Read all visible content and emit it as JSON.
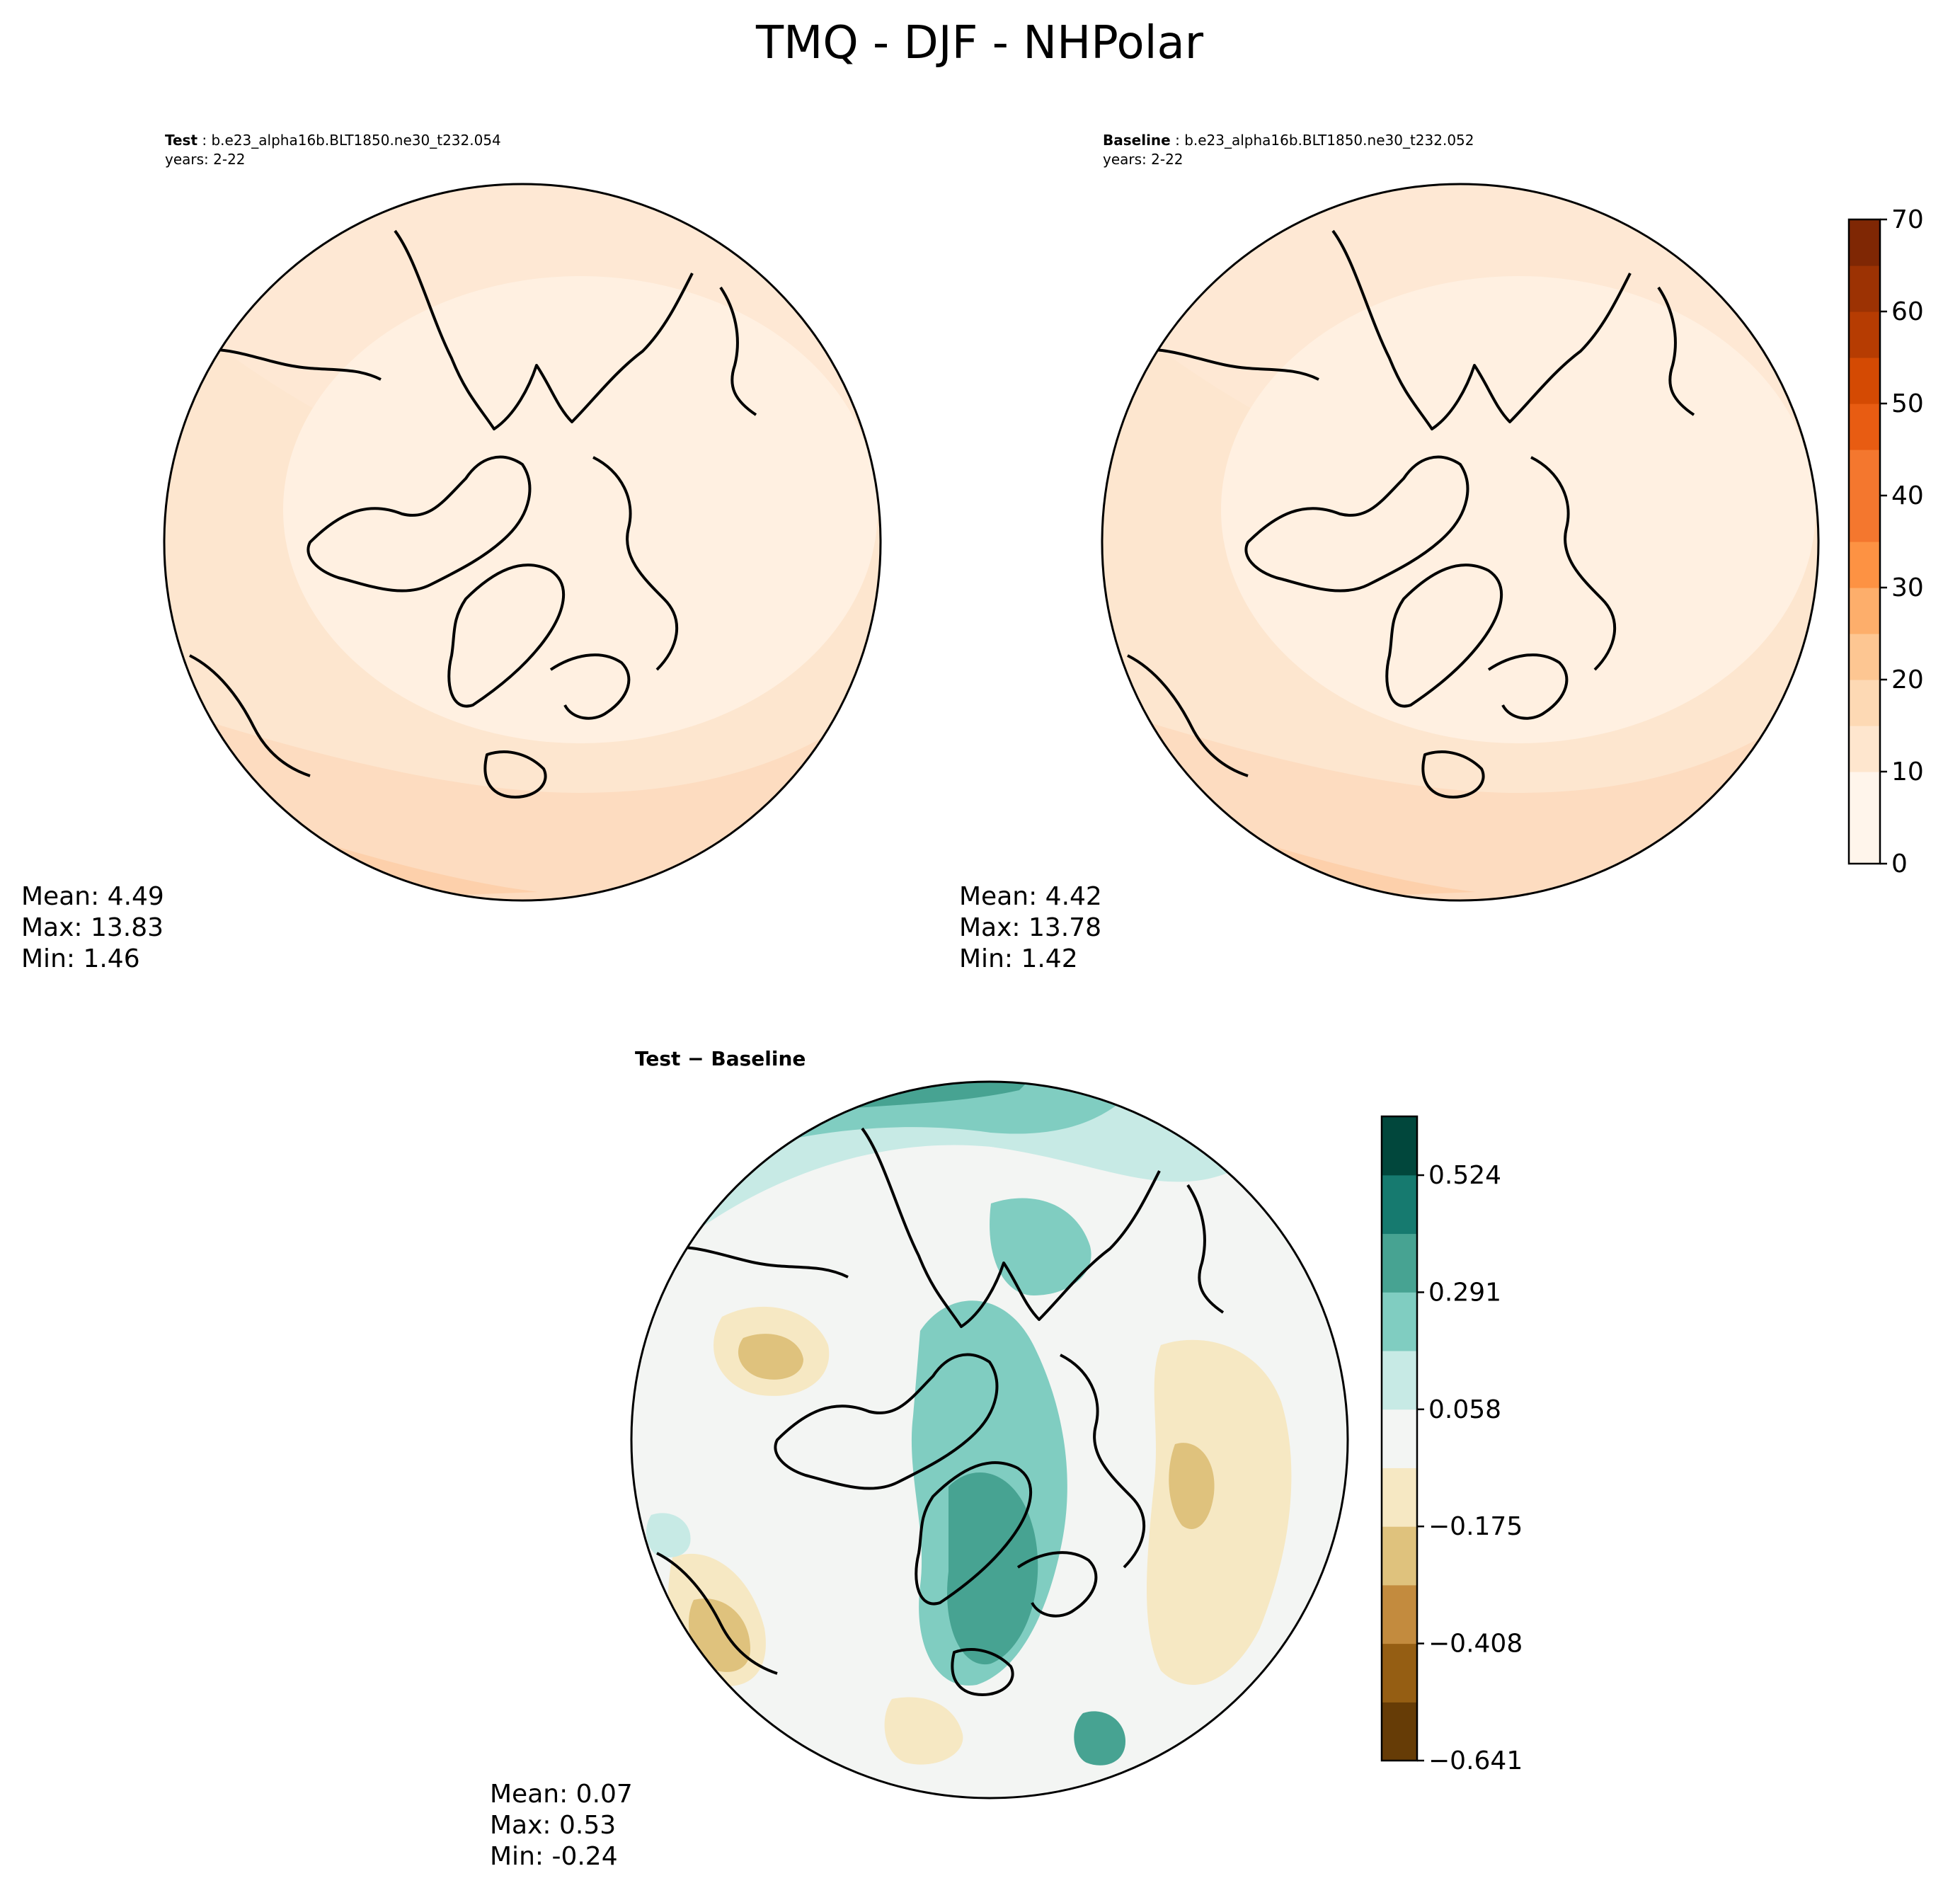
{
  "title": "TMQ - DJF - NHPolar",
  "panels": [
    {
      "id": "test",
      "label_bold": "Test",
      "label_rest": " : b.e23_alpha16b.BLT1850.ne30_t232.054",
      "years": "years: 2-22",
      "stats": [
        "Mean:  4.49",
        "Max: 13.83",
        "Min:  1.46"
      ]
    },
    {
      "id": "baseline",
      "label_bold": "Baseline",
      "label_rest": " : b.e23_alpha16b.BLT1850.ne30_t232.052",
      "years": "years: 2-22",
      "stats": [
        "Mean:  4.42",
        "Max: 13.78",
        "Min:  1.42"
      ]
    },
    {
      "id": "diff",
      "label_bold": "Test − Baseline",
      "stats": [
        "Mean:  0.07",
        "Max:  0.53",
        "Min: -0.24"
      ]
    }
  ],
  "chart_data": [
    {
      "type": "heatmap",
      "projection": "north-polar-stereographic",
      "panel": "Test",
      "stats": {
        "mean": 4.49,
        "max": 13.83,
        "min": 1.46
      },
      "colorbar": {
        "ticks": [
          "0",
          "10",
          "20",
          "30",
          "40",
          "50",
          "60",
          "70"
        ],
        "range": [
          0,
          70
        ],
        "step": 5,
        "cmap": "Oranges"
      }
    },
    {
      "type": "heatmap",
      "projection": "north-polar-stereographic",
      "panel": "Baseline",
      "stats": {
        "mean": 4.42,
        "max": 13.78,
        "min": 1.42
      },
      "colorbar": "shared with Test"
    },
    {
      "type": "heatmap",
      "projection": "north-polar-stereographic",
      "panel": "Test − Baseline",
      "stats": {
        "mean": 0.07,
        "max": 0.53,
        "min": -0.24
      },
      "colorbar": {
        "ticks": [
          "0.524",
          "0.291",
          "0.058",
          "−0.175",
          "−0.408",
          "−0.641"
        ],
        "range": [
          -0.641,
          0.641
        ],
        "levels": 11,
        "cmap": "BrBG"
      }
    }
  ],
  "colors": {
    "seq": [
      "#fff5eb",
      "#fee6ce",
      "#fdd9b4",
      "#fdc692",
      "#fdae6b",
      "#fd9243",
      "#f4772e",
      "#e85c12",
      "#d44a03",
      "#b63c02",
      "#9c3203",
      "#7f2704"
    ],
    "div": [
      "#663c06",
      "#955e13",
      "#c38b3e",
      "#dfc27d",
      "#f6e8c3",
      "#f3f5f3",
      "#c7eae5",
      "#80cdc1",
      "#47a392",
      "#167a6f",
      "#01473c"
    ]
  }
}
